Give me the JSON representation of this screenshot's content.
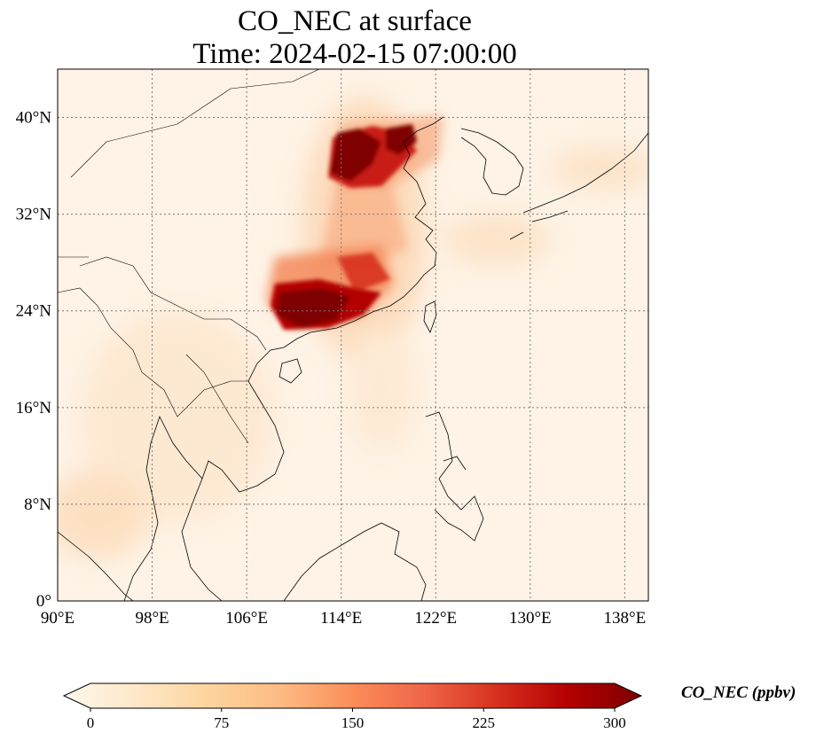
{
  "title": {
    "line1": "CO_NEC at surface",
    "line2": "Time: 2024-02-15 07:00:00"
  },
  "map": {
    "lon_range": [
      90,
      140
    ],
    "lat_range": [
      0,
      44
    ],
    "lon_ticks": [
      {
        "value": 90,
        "label": "90°E"
      },
      {
        "value": 98,
        "label": "98°E"
      },
      {
        "value": 106,
        "label": "106°E"
      },
      {
        "value": 114,
        "label": "114°E"
      },
      {
        "value": 122,
        "label": "122°E"
      },
      {
        "value": 130,
        "label": "130°E"
      },
      {
        "value": 138,
        "label": "138°E"
      }
    ],
    "lat_ticks": [
      {
        "value": 0,
        "label": "0°"
      },
      {
        "value": 8,
        "label": "8°N"
      },
      {
        "value": 16,
        "label": "16°N"
      },
      {
        "value": 24,
        "label": "24°N"
      },
      {
        "value": 32,
        "label": "32°N"
      },
      {
        "value": 40,
        "label": "40°N"
      }
    ],
    "gridlines": true,
    "background_color": "#fef3e6",
    "coastline_color": "#000000",
    "plume_colors": [
      "#fdd7a8",
      "#f38a5c",
      "#c91d12",
      "#7f0000"
    ]
  },
  "colorbar": {
    "label": "CO_NEC (ppbv)",
    "min": 0,
    "max": 300,
    "extend": "both",
    "ticks": [
      {
        "value": 0,
        "label": "0"
      },
      {
        "value": 75,
        "label": "75"
      },
      {
        "value": 150,
        "label": "150"
      },
      {
        "value": 225,
        "label": "225"
      },
      {
        "value": 300,
        "label": "300"
      }
    ],
    "colormap": [
      "#fff7ec",
      "#fee8c8",
      "#fdd49e",
      "#fdbb84",
      "#fc8d59",
      "#ef6548",
      "#d7301f",
      "#b30000",
      "#7f0000"
    ]
  }
}
